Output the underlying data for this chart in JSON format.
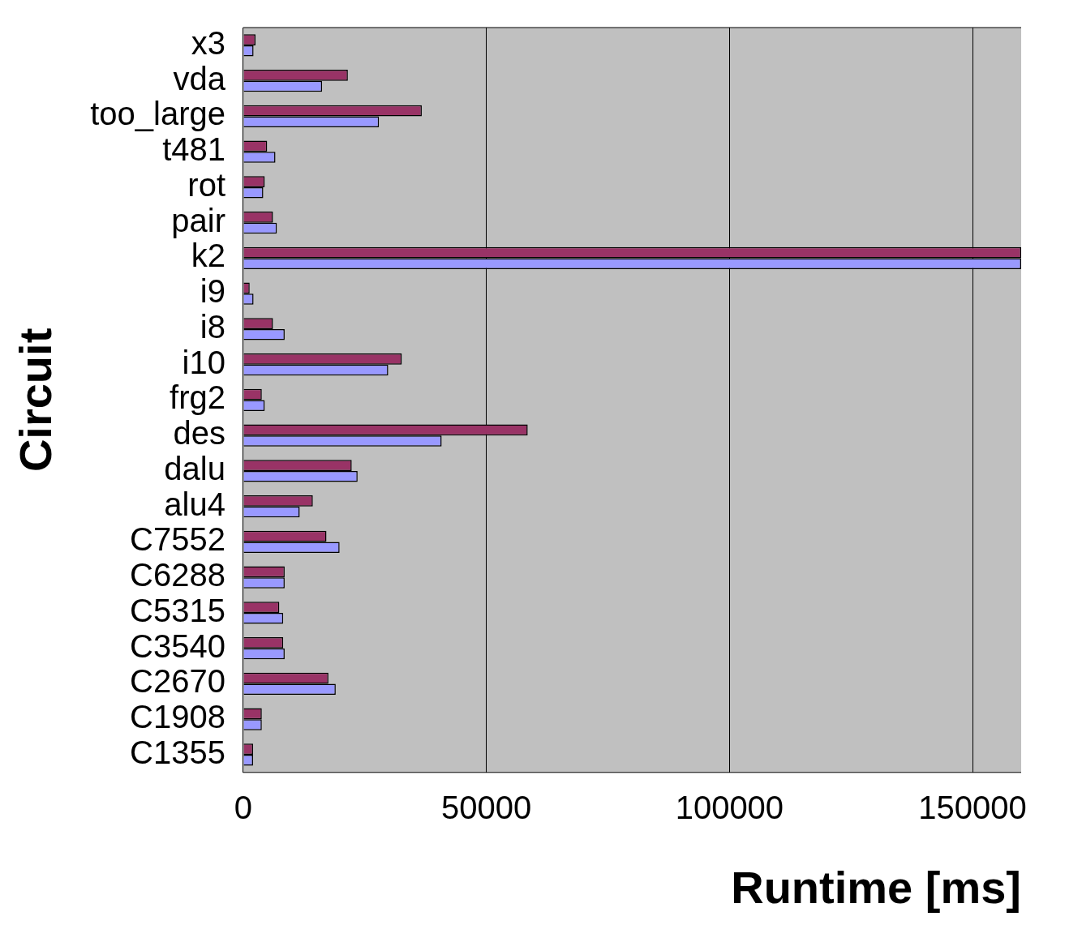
{
  "chart_data": {
    "type": "bar",
    "orientation": "horizontal",
    "xlabel": "Runtime [ms]",
    "ylabel": "Circuit",
    "categories": [
      "x3",
      "vda",
      "too_large",
      "t481",
      "rot",
      "pair",
      "k2",
      "i9",
      "i8",
      "i10",
      "frg2",
      "des",
      "dalu",
      "alu4",
      "C7552",
      "C6288",
      "C5315",
      "C3540",
      "C2670",
      "C1908",
      "C1355"
    ],
    "series": [
      {
        "color": "#993366",
        "values": [
          2500,
          21500,
          36700,
          4900,
          4400,
          6100,
          160000,
          1300,
          6100,
          32600,
          3800,
          58500,
          22300,
          14300,
          17100,
          8500,
          7400,
          8200,
          17500,
          3800,
          2000
        ]
      },
      {
        "color": "#9999ff",
        "values": [
          2100,
          16200,
          27900,
          6600,
          4100,
          6900,
          160000,
          2100,
          8500,
          29800,
          4400,
          40800,
          23500,
          11600,
          19800,
          8500,
          8200,
          8500,
          19000,
          3800,
          2000
        ]
      }
    ],
    "xlim": [
      0,
      160000
    ],
    "xticks": [
      0,
      50000,
      100000,
      150000
    ],
    "grid": "x",
    "legend": false
  }
}
